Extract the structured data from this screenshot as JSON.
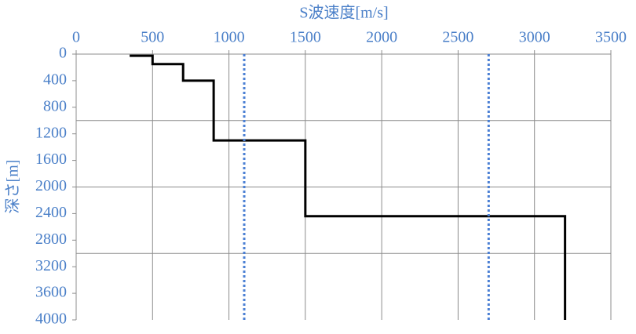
{
  "chart_data": {
    "type": "line",
    "x_label": "S波速度[m/s]",
    "y_label": "深さ[m]",
    "xlim": [
      0,
      3500
    ],
    "xticks": [
      0,
      500,
      1000,
      1500,
      2000,
      2500,
      3000,
      3500
    ],
    "ylim": [
      0,
      4000
    ],
    "yticks": [
      0,
      400,
      800,
      1200,
      1600,
      2000,
      2400,
      2800,
      3200,
      3600,
      4000
    ],
    "y_inverted": true,
    "x_axis_position": "top",
    "x_grid": true,
    "y_grid_lines": [
      1000,
      2000,
      3000
    ],
    "series": [
      {
        "color": "#000000",
        "dash": "solid",
        "x": [
          350,
          500,
          500,
          700,
          700,
          900,
          900,
          1500,
          1500,
          3200,
          3200
        ],
        "values": [
          25,
          25,
          150,
          150,
          400,
          400,
          1300,
          1300,
          2440,
          2440,
          4000
        ]
      },
      {
        "color": "#4a7fd4",
        "dash": "dotted",
        "x": [
          1100,
          1100
        ],
        "values": [
          0,
          4000
        ]
      },
      {
        "color": "#4a7fd4",
        "dash": "dotted",
        "x": [
          2700,
          2700
        ],
        "values": [
          0,
          4000
        ]
      }
    ]
  }
}
